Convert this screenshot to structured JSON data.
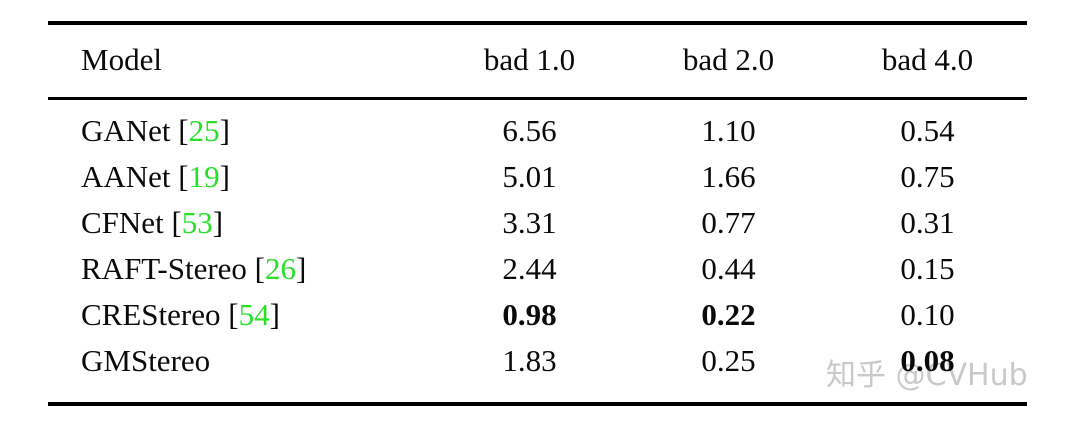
{
  "table": {
    "columns": [
      "Model",
      "bad 1.0",
      "bad 2.0",
      "bad 4.0"
    ],
    "citation_brackets": [
      "[",
      "]"
    ],
    "rows": [
      {
        "model": "GANet",
        "citation": "25",
        "values": [
          "6.56",
          "1.10",
          "0.54"
        ],
        "bold": [
          false,
          false,
          false
        ]
      },
      {
        "model": "AANet",
        "citation": "19",
        "values": [
          "5.01",
          "1.66",
          "0.75"
        ],
        "bold": [
          false,
          false,
          false
        ]
      },
      {
        "model": "CFNet",
        "citation": "53",
        "values": [
          "3.31",
          "0.77",
          "0.31"
        ],
        "bold": [
          false,
          false,
          false
        ]
      },
      {
        "model": "RAFT-Stereo",
        "citation": "26",
        "values": [
          "2.44",
          "0.44",
          "0.15"
        ],
        "bold": [
          false,
          false,
          false
        ]
      },
      {
        "model": "CREStereo",
        "citation": "54",
        "values": [
          "0.98",
          "0.22",
          "0.10"
        ],
        "bold": [
          true,
          true,
          false
        ]
      },
      {
        "model": "GMStereo",
        "citation": null,
        "values": [
          "1.83",
          "0.25",
          "0.08"
        ],
        "bold": [
          false,
          false,
          true
        ]
      }
    ]
  },
  "watermark": {
    "text": "知乎 @CVHub"
  },
  "colors": {
    "citation_green": "#28e028",
    "watermark_gray": "#c9c9c9",
    "text_black": "#0a0a0a",
    "rule_black": "#000000"
  }
}
